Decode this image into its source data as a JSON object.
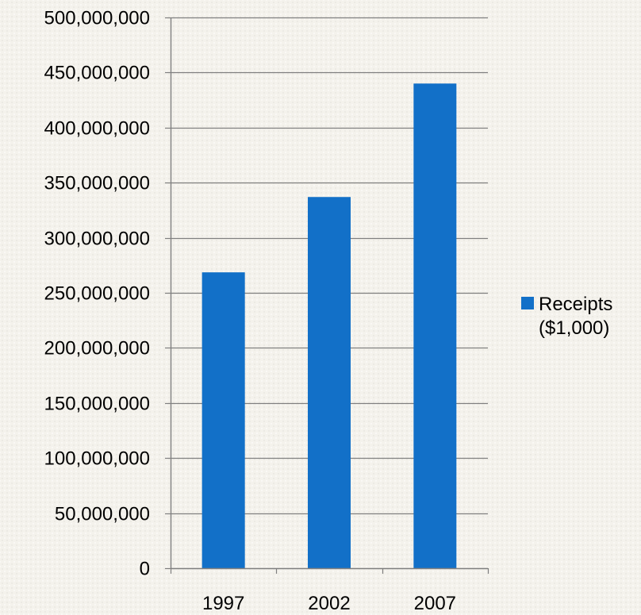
{
  "chart_data": {
    "type": "bar",
    "categories": [
      "1997",
      "2002",
      "2007"
    ],
    "series": [
      {
        "name": "Receipts ($1,000)",
        "values": [
          268600000,
          337000000,
          440000000
        ],
        "color": "#1270c8"
      }
    ],
    "ylim": [
      0,
      500000000
    ],
    "yticks": [
      0,
      50000000,
      100000000,
      150000000,
      200000000,
      250000000,
      300000000,
      350000000,
      400000000,
      450000000,
      500000000
    ],
    "ytick_labels": [
      "0",
      "50,000,000",
      "100,000,000",
      "150,000,000",
      "200,000,000",
      "250,000,000",
      "300,000,000",
      "350,000,000",
      "400,000,000",
      "450,000,000",
      "500,000,000"
    ],
    "grid": true,
    "legend": {
      "position": "right",
      "lines": [
        "Receipts",
        "($1,000)"
      ]
    },
    "title": "",
    "xlabel": "",
    "ylabel": ""
  }
}
